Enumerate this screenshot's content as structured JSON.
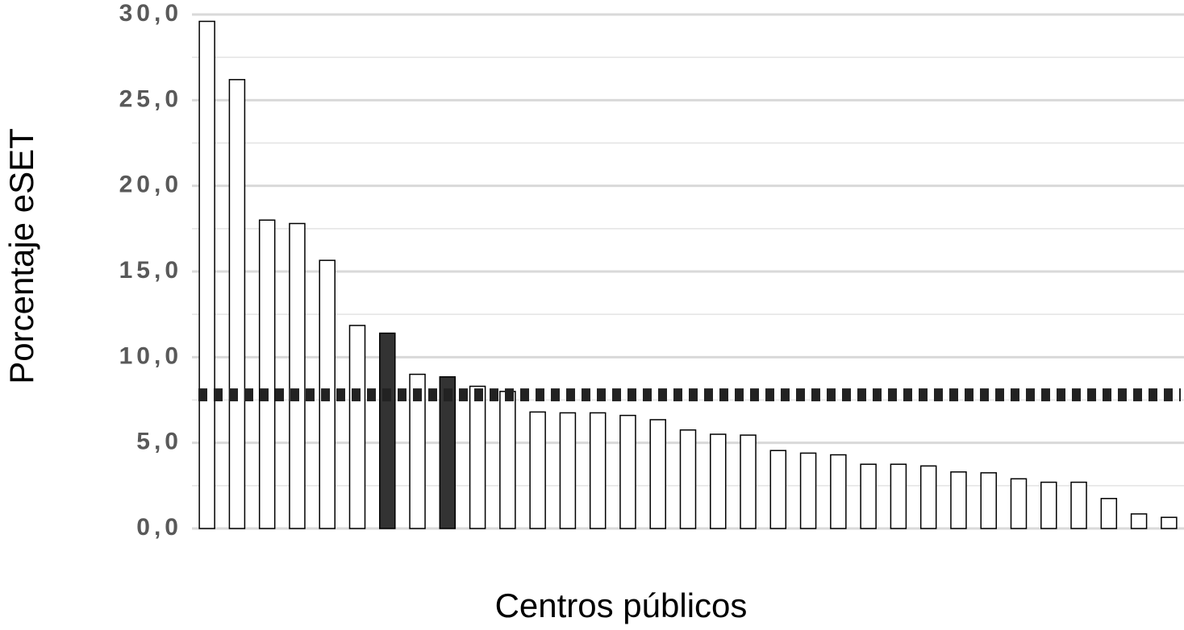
{
  "chart_data": {
    "type": "bar",
    "x_label": "Centros públicos",
    "y_label": "Porcentaje eSET",
    "categories": [
      null,
      null,
      null,
      null,
      null,
      null,
      null,
      null,
      null,
      null,
      null,
      null,
      null,
      null,
      null,
      null,
      null,
      null,
      null,
      null,
      null,
      null,
      null,
      null,
      null,
      null,
      null,
      null,
      null,
      null,
      null,
      null,
      null
    ],
    "values": [
      29.6,
      26.2,
      18.0,
      17.8,
      15.65,
      11.85,
      11.4,
      9.0,
      8.85,
      8.3,
      8.0,
      6.8,
      6.75,
      6.75,
      6.6,
      6.35,
      5.75,
      5.5,
      5.45,
      4.55,
      4.4,
      4.3,
      3.75,
      3.75,
      3.65,
      3.3,
      3.25,
      2.9,
      2.7,
      2.7,
      1.75,
      0.85,
      0.65
    ],
    "colors": [
      "#ffffff",
      "#ffffff",
      "#ffffff",
      "#ffffff",
      "#ffffff",
      "#ffffff",
      "#333333",
      "#ffffff",
      "#333333",
      "#ffffff",
      "#ffffff",
      "#ffffff",
      "#ffffff",
      "#ffffff",
      "#ffffff",
      "#ffffff",
      "#ffffff",
      "#ffffff",
      "#ffffff",
      "#ffffff",
      "#ffffff",
      "#ffffff",
      "#ffffff",
      "#ffffff",
      "#ffffff",
      "#ffffff",
      "#ffffff",
      "#ffffff",
      "#ffffff",
      "#ffffff",
      "#ffffff",
      "#ffffff",
      "#ffffff"
    ],
    "bar_edge_color": "#000000",
    "reference_line": 7.8,
    "reference_color": "#222222",
    "ylim": [
      0,
      30
    ],
    "yticks": [
      {
        "value": 0,
        "label": "0,0"
      },
      {
        "value": 5,
        "label": "5,0"
      },
      {
        "value": 10,
        "label": "10,0"
      },
      {
        "value": 15,
        "label": "15,0"
      },
      {
        "value": 20,
        "label": "20,0"
      },
      {
        "value": 25,
        "label": "25,0"
      },
      {
        "value": 30,
        "label": "30,0"
      }
    ],
    "minor_yticks": [
      2.5,
      7.5,
      12.5,
      17.5,
      22.5,
      27.5
    ],
    "grid": true
  }
}
